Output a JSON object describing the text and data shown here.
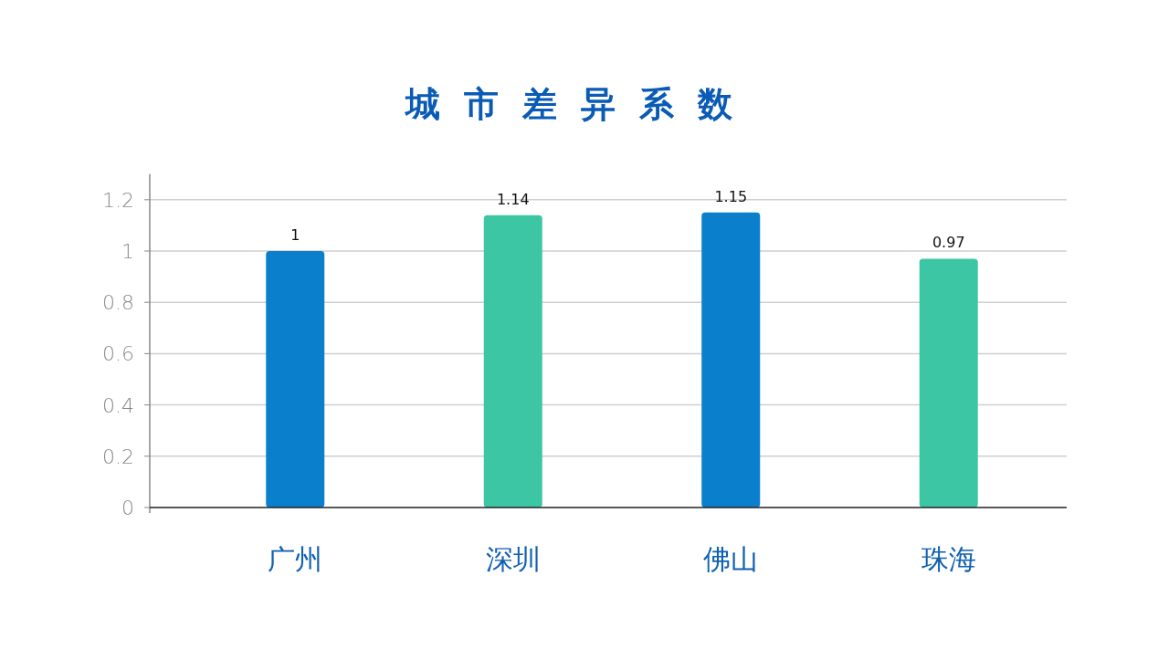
{
  "chart_data": {
    "type": "bar",
    "title": "城市差异系数",
    "categories": [
      "广州",
      "深圳",
      "佛山",
      "珠海"
    ],
    "values": [
      1,
      1.14,
      1.15,
      0.97
    ],
    "colors": [
      "#0a7fcc",
      "#3cc6a4",
      "#0a7fcc",
      "#3cc6a4"
    ],
    "ylim": [
      0,
      1.3
    ],
    "yticks": [
      0,
      0.2,
      0.4,
      0.6,
      0.8,
      1,
      1.2
    ],
    "grid": "y",
    "data_labels": true
  }
}
